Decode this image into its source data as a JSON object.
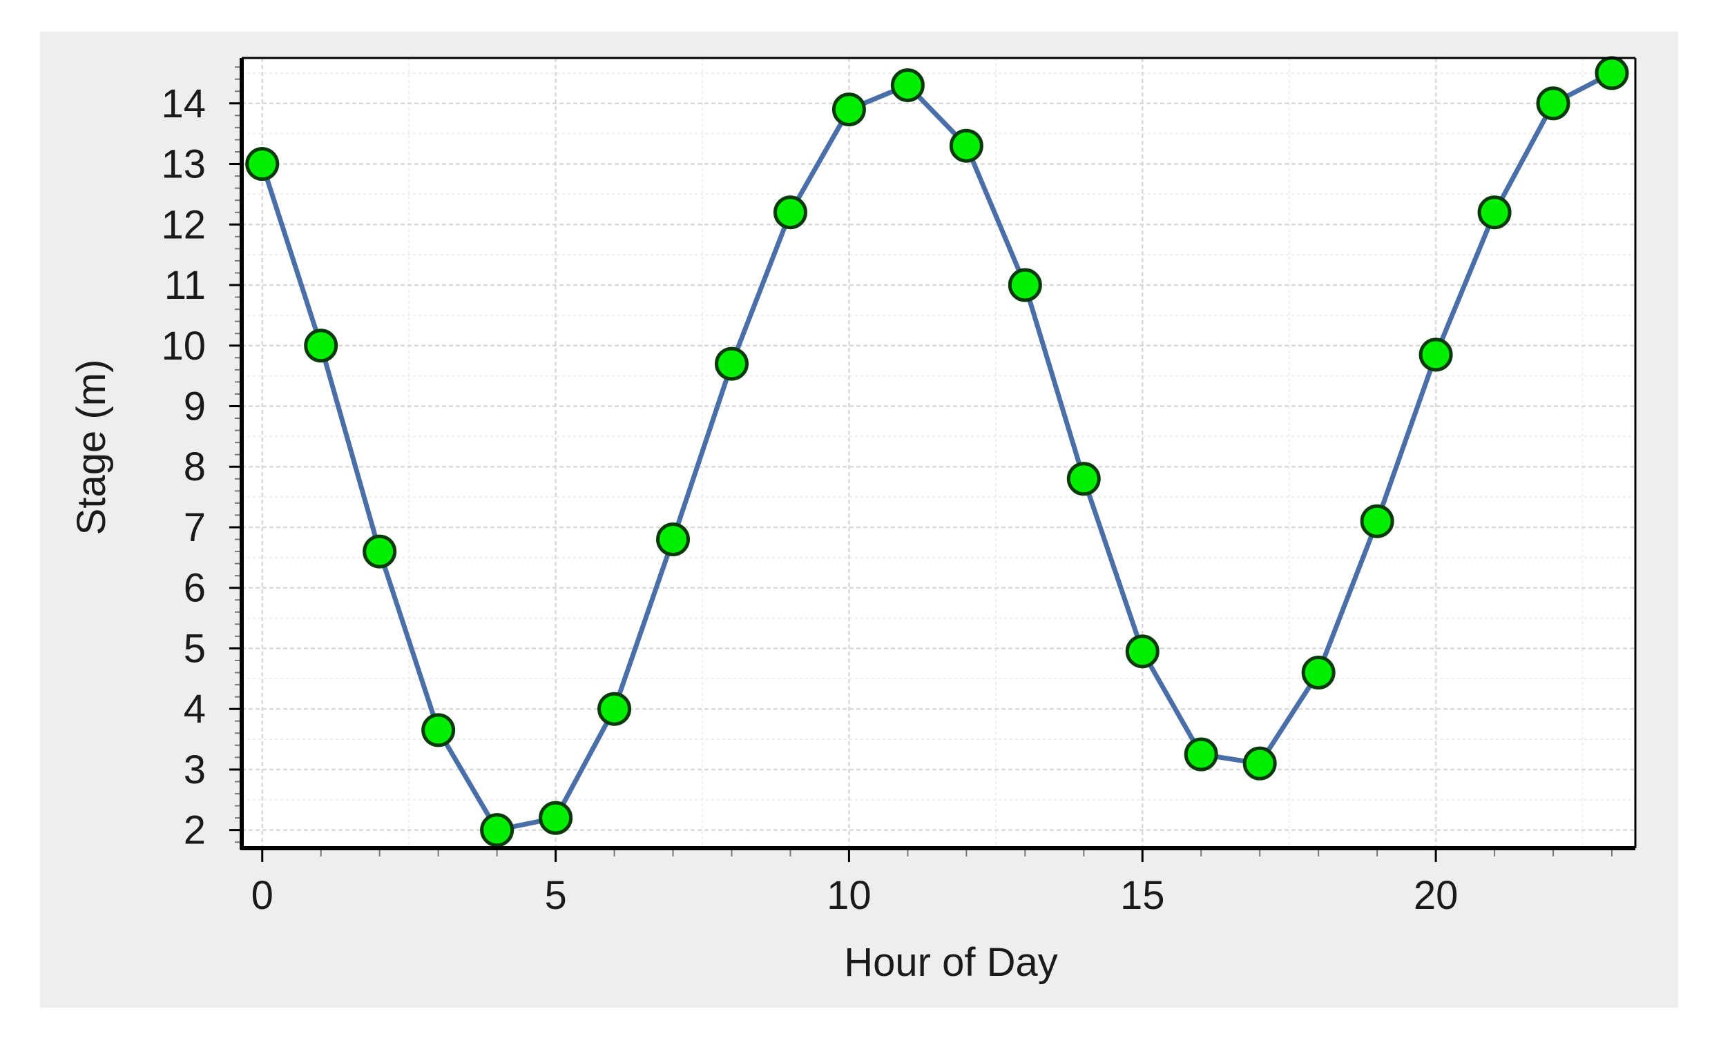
{
  "colors": {
    "panel_background": "#eeeeee",
    "plot_background": "#ffffff",
    "grid_major": "#d9d9d9",
    "grid_minor": "#ededed",
    "axis": "#000000",
    "line": "#4a6fa8",
    "marker_fill": "#00ee00",
    "marker_edge": "#0a3a0a"
  },
  "chart_data": {
    "type": "line",
    "title": "",
    "xlabel": "Hour of Day",
    "ylabel": "Stage (m)",
    "xlim": [
      -0.35,
      23.4
    ],
    "ylim": [
      1.7,
      14.75
    ],
    "x_ticks": [
      0,
      5,
      10,
      15,
      20
    ],
    "y_ticks": [
      2,
      3,
      4,
      5,
      6,
      7,
      8,
      9,
      10,
      11,
      12,
      13,
      14
    ],
    "grid": true,
    "legend": "none",
    "marker": "circle",
    "series": [
      {
        "x": [
          0,
          1,
          2,
          3,
          4,
          5,
          6,
          7,
          8,
          9,
          10,
          11,
          12,
          13,
          14,
          15,
          16,
          17,
          18,
          19,
          20,
          21,
          22,
          23
        ],
        "y": [
          13.0,
          10.0,
          6.6,
          3.65,
          2.0,
          2.2,
          4.0,
          6.8,
          9.7,
          12.2,
          13.9,
          14.3,
          13.3,
          11.0,
          7.8,
          4.95,
          3.25,
          3.1,
          4.6,
          7.1,
          9.85,
          12.2,
          14.0,
          14.5
        ]
      }
    ]
  }
}
